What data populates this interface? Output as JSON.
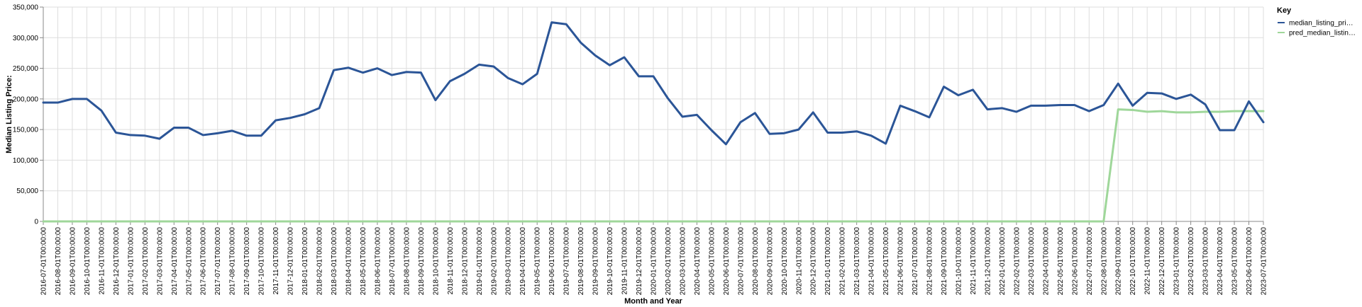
{
  "chart_data": {
    "type": "line",
    "xlabel": "Month and Year",
    "ylabel": "Median Listing Price:",
    "ylim": [
      0,
      350000
    ],
    "yticks": [
      0,
      50000,
      100000,
      150000,
      200000,
      250000,
      300000,
      350000
    ],
    "ytick_labels": [
      "0",
      "50,000",
      "100,000",
      "150,000",
      "200,000",
      "250,000",
      "300,000",
      "350,000"
    ],
    "grid": true,
    "legend": {
      "title": "Key",
      "placement": "right",
      "entries": [
        {
          "label": "median_listing_pri…",
          "color": "#2b5597"
        },
        {
          "label": "pred_median_listin…",
          "color": "#9fd79a"
        }
      ]
    },
    "x": [
      "2016-07-01T00:00:00",
      "2016-08-01T00:00:00",
      "2016-09-01T00:00:00",
      "2016-10-01T00:00:00",
      "2016-11-01T00:00:00",
      "2016-12-01T00:00:00",
      "2017-01-01T00:00:00",
      "2017-02-01T00:00:00",
      "2017-03-01T00:00:00",
      "2017-04-01T00:00:00",
      "2017-05-01T00:00:00",
      "2017-06-01T00:00:00",
      "2017-07-01T00:00:00",
      "2017-08-01T00:00:00",
      "2017-09-01T00:00:00",
      "2017-10-01T00:00:00",
      "2017-11-01T00:00:00",
      "2017-12-01T00:00:00",
      "2018-01-01T00:00:00",
      "2018-02-01T00:00:00",
      "2018-03-01T00:00:00",
      "2018-04-01T00:00:00",
      "2018-05-01T00:00:00",
      "2018-06-01T00:00:00",
      "2018-07-01T00:00:00",
      "2018-08-01T00:00:00",
      "2018-09-01T00:00:00",
      "2018-10-01T00:00:00",
      "2018-11-01T00:00:00",
      "2018-12-01T00:00:00",
      "2019-01-01T00:00:00",
      "2019-02-01T00:00:00",
      "2019-03-01T00:00:00",
      "2019-04-01T00:00:00",
      "2019-05-01T00:00:00",
      "2019-06-01T00:00:00",
      "2019-07-01T00:00:00",
      "2019-08-01T00:00:00",
      "2019-09-01T00:00:00",
      "2019-10-01T00:00:00",
      "2019-11-01T00:00:00",
      "2019-12-01T00:00:00",
      "2020-01-01T00:00:00",
      "2020-02-01T00:00:00",
      "2020-03-01T00:00:00",
      "2020-04-01T00:00:00",
      "2020-05-01T00:00:00",
      "2020-06-01T00:00:00",
      "2020-07-01T00:00:00",
      "2020-08-01T00:00:00",
      "2020-09-01T00:00:00",
      "2020-10-01T00:00:00",
      "2020-11-01T00:00:00",
      "2020-12-01T00:00:00",
      "2021-01-01T00:00:00",
      "2021-02-01T00:00:00",
      "2021-03-01T00:00:00",
      "2021-04-01T00:00:00",
      "2021-05-01T00:00:00",
      "2021-06-01T00:00:00",
      "2021-07-01T00:00:00",
      "2021-08-01T00:00:00",
      "2021-09-01T00:00:00",
      "2021-10-01T00:00:00",
      "2021-11-01T00:00:00",
      "2021-12-01T00:00:00",
      "2022-01-01T00:00:00",
      "2022-02-01T00:00:00",
      "2022-03-01T00:00:00",
      "2022-04-01T00:00:00",
      "2022-05-01T00:00:00",
      "2022-06-01T00:00:00",
      "2022-07-01T00:00:00",
      "2022-08-01T00:00:00",
      "2022-09-01T00:00:00",
      "2022-10-01T00:00:00",
      "2022-11-01T00:00:00",
      "2022-12-01T00:00:00",
      "2023-01-01T00:00:00",
      "2023-02-01T00:00:00",
      "2023-03-01T00:00:00",
      "2023-04-01T00:00:00",
      "2023-05-01T00:00:00",
      "2023-06-01T00:00:00",
      "2023-07-01T00:00:00"
    ],
    "series": [
      {
        "name": "median_listing_pri…",
        "color": "#2b5597",
        "values": [
          194000,
          194000,
          200000,
          200000,
          181000,
          145000,
          141000,
          140000,
          135000,
          153000,
          153000,
          141000,
          144000,
          148000,
          140000,
          140000,
          165000,
          169000,
          175000,
          185000,
          247000,
          251000,
          243000,
          250000,
          239000,
          244000,
          243000,
          198000,
          229000,
          241000,
          256000,
          253000,
          234000,
          224000,
          241000,
          325000,
          322000,
          292000,
          271000,
          255000,
          268000,
          237000,
          237000,
          201000,
          171000,
          174000,
          149000,
          126000,
          162000,
          177000,
          143000,
          144000,
          150000,
          178000,
          145000,
          145000,
          147000,
          140000,
          127000,
          189000,
          180000,
          170000,
          220000,
          206000,
          215000,
          183000,
          185000,
          179000,
          189000,
          189000,
          190000,
          190000,
          180000,
          190000,
          225000,
          189000,
          210000,
          209000,
          200000,
          207000,
          191000,
          149000,
          149000,
          196000,
          162000
        ]
      },
      {
        "name": "pred_median_listin…",
        "color": "#9fd79a",
        "values": [
          0,
          0,
          0,
          0,
          0,
          0,
          0,
          0,
          0,
          0,
          0,
          0,
          0,
          0,
          0,
          0,
          0,
          0,
          0,
          0,
          0,
          0,
          0,
          0,
          0,
          0,
          0,
          0,
          0,
          0,
          0,
          0,
          0,
          0,
          0,
          0,
          0,
          0,
          0,
          0,
          0,
          0,
          0,
          0,
          0,
          0,
          0,
          0,
          0,
          0,
          0,
          0,
          0,
          0,
          0,
          0,
          0,
          0,
          0,
          0,
          0,
          0,
          0,
          0,
          0,
          0,
          0,
          0,
          0,
          0,
          0,
          0,
          0,
          0,
          183000,
          182000,
          179000,
          180000,
          178000,
          178000,
          179000,
          179000,
          180000,
          180000,
          180000
        ]
      }
    ]
  }
}
